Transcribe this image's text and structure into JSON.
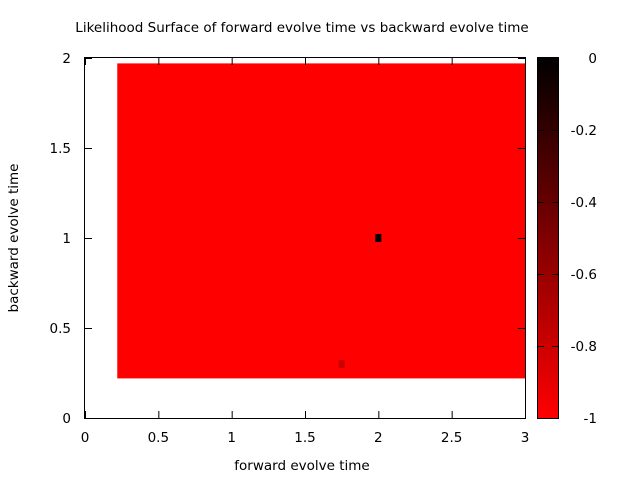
{
  "chart_data": {
    "type": "heatmap",
    "title": "Likelihood Surface of forward evolve time vs backward evolve time",
    "xlabel": "forward evolve time",
    "ylabel": "backward evolve time",
    "xlim": [
      0,
      3
    ],
    "ylim": [
      0,
      2
    ],
    "xticks": [
      "0",
      "0.5",
      "1",
      "1.5",
      "2",
      "2.5",
      "3"
    ],
    "xtick_values": [
      0,
      0.5,
      1,
      1.5,
      2,
      2.5,
      3
    ],
    "yticks": [
      "0",
      "0.5",
      "1",
      "1.5",
      "2"
    ],
    "ytick_values": [
      0,
      0.5,
      1,
      1.5,
      2
    ],
    "surface": {
      "x_range": [
        0.22,
        3.0
      ],
      "y_range": [
        0.22,
        1.97
      ],
      "value": -1
    },
    "cells": [
      {
        "x": 2.0,
        "y": 1.0,
        "value": 0
      },
      {
        "x": 1.75,
        "y": 0.3,
        "value": -0.8
      }
    ],
    "colorbar": {
      "range": [
        -1,
        0
      ],
      "ticks": [
        "0",
        "-0.2",
        "-0.4",
        "-0.6",
        "-0.8",
        "-1"
      ],
      "tick_values": [
        0,
        -0.2,
        -0.4,
        -0.6,
        -0.8,
        -1
      ]
    },
    "colors": {
      "high": "#000000",
      "low": "#ff0000"
    },
    "grid": false
  }
}
